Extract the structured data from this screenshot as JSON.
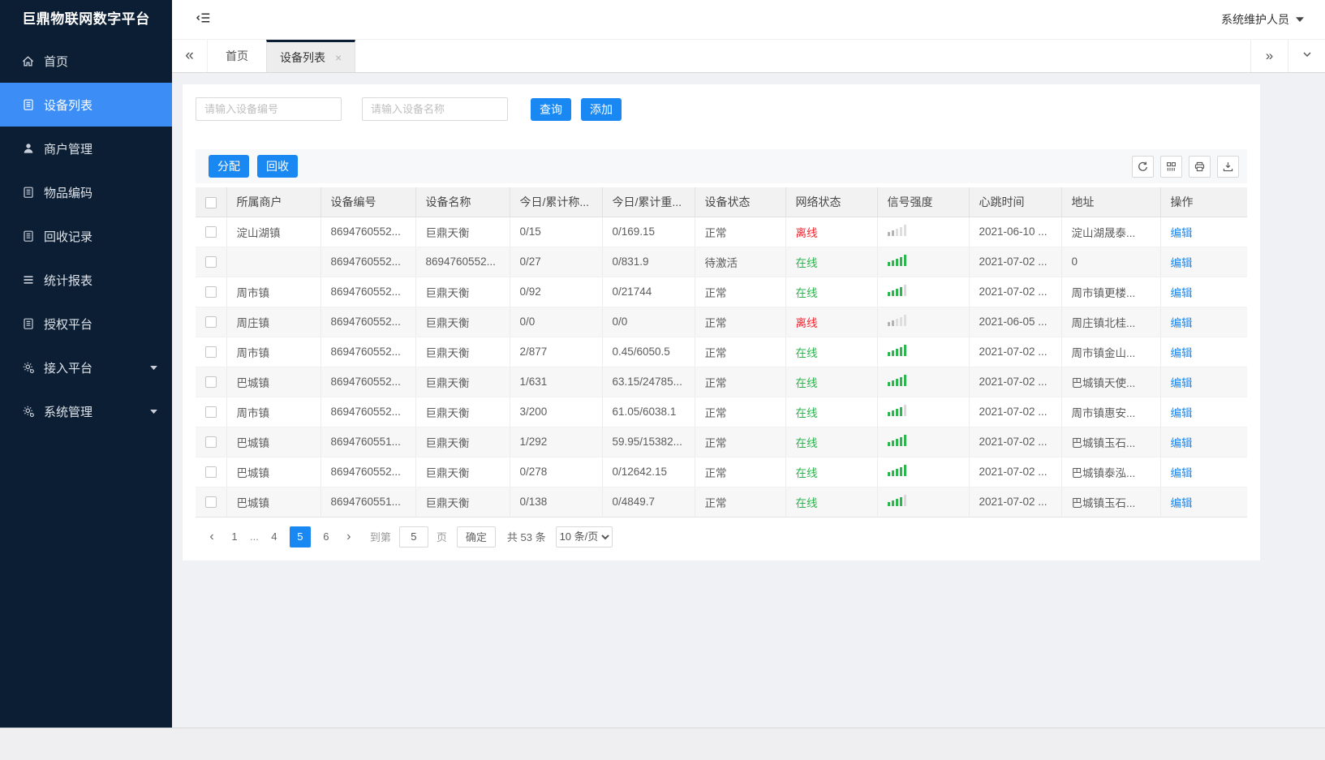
{
  "app": {
    "title": "巨鼎物联网数字平台",
    "user": "系统维护人员"
  },
  "sidebar": {
    "items": [
      {
        "label": "首页",
        "icon": "home-icon",
        "active": false,
        "expandable": false
      },
      {
        "label": "设备列表",
        "icon": "list-icon",
        "active": true,
        "expandable": false
      },
      {
        "label": "商户管理",
        "icon": "user-icon",
        "active": false,
        "expandable": false
      },
      {
        "label": "物品编码",
        "icon": "doc-icon",
        "active": false,
        "expandable": false
      },
      {
        "label": "回收记录",
        "icon": "doc-icon",
        "active": false,
        "expandable": false
      },
      {
        "label": "统计报表",
        "icon": "menu-icon",
        "active": false,
        "expandable": false
      },
      {
        "label": "授权平台",
        "icon": "doc-icon",
        "active": false,
        "expandable": false
      },
      {
        "label": "接入平台",
        "icon": "gear-icon",
        "active": false,
        "expandable": true
      },
      {
        "label": "系统管理",
        "icon": "gear-icon",
        "active": false,
        "expandable": true
      }
    ]
  },
  "tabs": {
    "items": [
      {
        "label": "首页",
        "active": false,
        "closable": false
      },
      {
        "label": "设备列表",
        "active": true,
        "closable": true
      }
    ],
    "close_glyph": "×",
    "scroll_left_glyph": "«",
    "scroll_right_glyph": "»"
  },
  "search": {
    "device_no_placeholder": "请输入设备编号",
    "device_name_placeholder": "请输入设备名称",
    "query_label": "查询",
    "add_label": "添加"
  },
  "toolbar": {
    "assign_label": "分配",
    "recycle_label": "回收",
    "icons": [
      "refresh-icon",
      "columns-icon",
      "printer-icon",
      "download-icon"
    ]
  },
  "table": {
    "columns": [
      "所属商户",
      "设备编号",
      "设备名称",
      "今日/累计称...",
      "今日/累计重...",
      "设备状态",
      "网络状态",
      "信号强度",
      "心跳时间",
      "地址",
      "操作"
    ],
    "rows": [
      {
        "merchant": "淀山湖镇",
        "device_no": "8694760552...",
        "device_name": "巨鼎天衡",
        "today_count": "0/15",
        "today_weight": "0/169.15",
        "device_status": "正常",
        "network_status": "离线",
        "online": false,
        "signal_level": 2,
        "heartbeat": "2021-06-10 ...",
        "address": "淀山湖晟泰...",
        "action": "编辑"
      },
      {
        "merchant": "",
        "device_no": "8694760552...",
        "device_name": "8694760552...",
        "today_count": "0/27",
        "today_weight": "0/831.9",
        "device_status": "待激活",
        "network_status": "在线",
        "online": true,
        "signal_level": 5,
        "heartbeat": "2021-07-02 ...",
        "address": "0",
        "action": "编辑"
      },
      {
        "merchant": "周市镇",
        "device_no": "8694760552...",
        "device_name": "巨鼎天衡",
        "today_count": "0/92",
        "today_weight": "0/21744",
        "device_status": "正常",
        "network_status": "在线",
        "online": true,
        "signal_level": 4,
        "heartbeat": "2021-07-02 ...",
        "address": "周市镇更楼...",
        "action": "编辑"
      },
      {
        "merchant": "周庄镇",
        "device_no": "8694760552...",
        "device_name": "巨鼎天衡",
        "today_count": "0/0",
        "today_weight": "0/0",
        "device_status": "正常",
        "network_status": "离线",
        "online": false,
        "signal_level": 2,
        "heartbeat": "2021-06-05 ...",
        "address": "周庄镇北桂...",
        "action": "编辑"
      },
      {
        "merchant": "周市镇",
        "device_no": "8694760552...",
        "device_name": "巨鼎天衡",
        "today_count": "2/877",
        "today_weight": "0.45/6050.5",
        "device_status": "正常",
        "network_status": "在线",
        "online": true,
        "signal_level": 5,
        "heartbeat": "2021-07-02 ...",
        "address": "周市镇金山...",
        "action": "编辑"
      },
      {
        "merchant": "巴城镇",
        "device_no": "8694760552...",
        "device_name": "巨鼎天衡",
        "today_count": "1/631",
        "today_weight": "63.15/24785...",
        "device_status": "正常",
        "network_status": "在线",
        "online": true,
        "signal_level": 5,
        "heartbeat": "2021-07-02 ...",
        "address": "巴城镇天使...",
        "action": "编辑"
      },
      {
        "merchant": "周市镇",
        "device_no": "8694760552...",
        "device_name": "巨鼎天衡",
        "today_count": "3/200",
        "today_weight": "61.05/6038.1",
        "device_status": "正常",
        "network_status": "在线",
        "online": true,
        "signal_level": 4,
        "heartbeat": "2021-07-02 ...",
        "address": "周市镇惠安...",
        "action": "编辑"
      },
      {
        "merchant": "巴城镇",
        "device_no": "8694760551...",
        "device_name": "巨鼎天衡",
        "today_count": "1/292",
        "today_weight": "59.95/15382...",
        "device_status": "正常",
        "network_status": "在线",
        "online": true,
        "signal_level": 5,
        "heartbeat": "2021-07-02 ...",
        "address": "巴城镇玉石...",
        "action": "编辑"
      },
      {
        "merchant": "巴城镇",
        "device_no": "8694760552...",
        "device_name": "巨鼎天衡",
        "today_count": "0/278",
        "today_weight": "0/12642.15",
        "device_status": "正常",
        "network_status": "在线",
        "online": true,
        "signal_level": 5,
        "heartbeat": "2021-07-02 ...",
        "address": "巴城镇泰泓...",
        "action": "编辑"
      },
      {
        "merchant": "巴城镇",
        "device_no": "8694760551...",
        "device_name": "巨鼎天衡",
        "today_count": "0/138",
        "today_weight": "0/4849.7",
        "device_status": "正常",
        "network_status": "在线",
        "online": true,
        "signal_level": 4,
        "heartbeat": "2021-07-02 ...",
        "address": "巴城镇玉石...",
        "action": "编辑"
      }
    ]
  },
  "pagination": {
    "prev_glyph": "‹",
    "next_glyph": "›",
    "pages": [
      "1",
      "...",
      "4",
      "5",
      "6"
    ],
    "active": "5",
    "goto_label": "到第",
    "goto_value": "5",
    "unit_label": "页",
    "confirm_label": "确定",
    "total_label": "共 53 条",
    "page_size": "10 条/页"
  },
  "colors": {
    "sidebar_bg": "#0c1e33",
    "active_item": "#3c8df6",
    "accent": "#1a88f2",
    "online": "#2bb24c",
    "offline": "#f5222d",
    "signal_on": "#2cb64e",
    "signal_off": "#d9d9d9"
  }
}
